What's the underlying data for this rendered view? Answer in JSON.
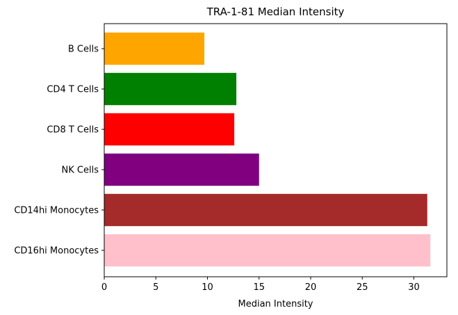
{
  "chart_data": {
    "type": "bar",
    "orientation": "horizontal",
    "title": "TRA-1-81 Median Intensity",
    "xlabel": "Median Intensity",
    "ylabel": "",
    "xlim": [
      0,
      33.2
    ],
    "xticks": [
      0,
      5,
      10,
      15,
      20,
      25,
      30
    ],
    "xtick_labels": [
      "0",
      "5",
      "10",
      "15",
      "20",
      "25",
      "30"
    ],
    "grid": false,
    "categories": [
      "B Cells",
      "CD4 T Cells",
      "CD8 T Cells",
      "NK Cells",
      "CD14hi Monocytes",
      "CD16hi Monocytes"
    ],
    "values": [
      9.7,
      12.8,
      12.6,
      15.0,
      31.3,
      31.6
    ],
    "colors": [
      "#ffa500",
      "#008000",
      "#ff0000",
      "#800080",
      "#a52a2a",
      "#ffc0cb"
    ]
  }
}
